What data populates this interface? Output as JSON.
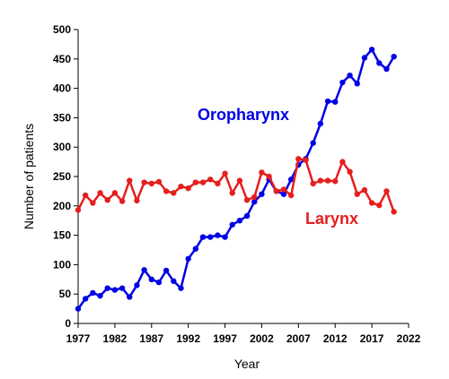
{
  "chart_data": {
    "type": "line",
    "xlabel": "Year",
    "ylabel": "Number of patients",
    "xlim": [
      1977,
      2022
    ],
    "ylim": [
      0,
      500
    ],
    "xticks": [
      1977,
      1982,
      1987,
      1992,
      1997,
      2002,
      2007,
      2012,
      2017,
      2022
    ],
    "yticks": [
      0,
      50,
      100,
      150,
      200,
      250,
      300,
      350,
      400,
      450,
      500
    ],
    "grid": false,
    "x": [
      1977,
      1978,
      1979,
      1980,
      1981,
      1982,
      1983,
      1984,
      1985,
      1986,
      1987,
      1988,
      1989,
      1990,
      1991,
      1992,
      1993,
      1994,
      1995,
      1996,
      1997,
      1998,
      1999,
      2000,
      2001,
      2002,
      2003,
      2004,
      2005,
      2006,
      2007,
      2008,
      2009,
      2010,
      2011,
      2012,
      2013,
      2014,
      2015,
      2016,
      2017,
      2018,
      2019,
      2020
    ],
    "series": [
      {
        "name": "Oropharynx",
        "color": "#0000e6",
        "values": [
          25,
          42,
          52,
          47,
          60,
          57,
          60,
          45,
          65,
          91,
          75,
          70,
          90,
          72,
          60,
          110,
          127,
          147,
          147,
          150,
          147,
          168,
          175,
          183,
          207,
          220,
          245,
          225,
          220,
          245,
          270,
          280,
          307,
          340,
          378,
          377,
          410,
          422,
          408,
          452,
          466,
          443,
          433,
          454
        ]
      },
      {
        "name": "Larynx",
        "color": "#e61e1e",
        "values": [
          193,
          218,
          205,
          222,
          210,
          222,
          208,
          243,
          209,
          240,
          238,
          241,
          225,
          222,
          233,
          230,
          240,
          240,
          245,
          238,
          255,
          222,
          243,
          210,
          215,
          257,
          250,
          225,
          228,
          218,
          280,
          278,
          238,
          243,
          243,
          242,
          275,
          258,
          220,
          227,
          205,
          201,
          225,
          190
        ]
      }
    ]
  }
}
